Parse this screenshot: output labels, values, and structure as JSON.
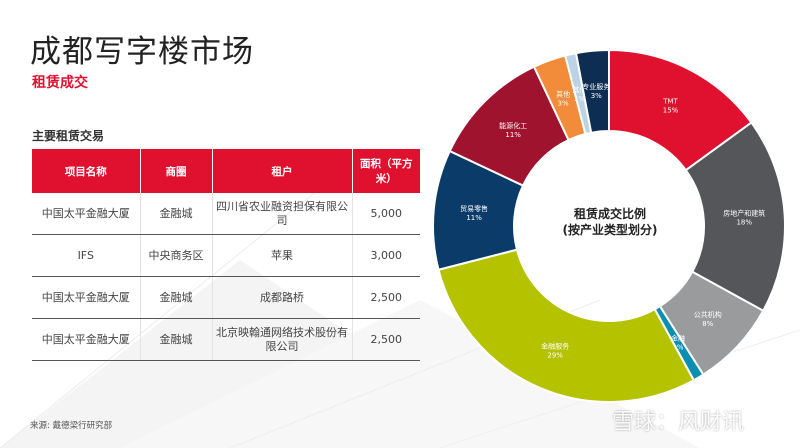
{
  "title": "成都写字楼市场",
  "subtitle": "租赁成交",
  "table_heading": "主要租赁交易",
  "table": {
    "headers": [
      "项目名称",
      "商圈",
      "租户",
      "面积（平方米）"
    ],
    "rows": [
      [
        "中国太平金融大厦",
        "金融城",
        "四川省农业融资担保有限公司",
        "5,000"
      ],
      [
        "IFS",
        "中央商务区",
        "苹果",
        "3,000"
      ],
      [
        "中国太平金融大厦",
        "金融城",
        "成都路桥",
        "2,500"
      ],
      [
        "中国太平金融大厦",
        "金融城",
        "北京映翰通网络技术股份有限公司",
        "2,500"
      ]
    ]
  },
  "source": "来源: 戴德梁行研究部",
  "watermark": "雪球：风财讯",
  "chart_data": {
    "type": "pie",
    "title": "租赁成交比例",
    "subtitle": "(按产业类型划分)",
    "unit": "%",
    "slices": [
      {
        "label": "TMT",
        "value": 15,
        "color": "#e0102f"
      },
      {
        "label": "房地产和建筑",
        "value": 18,
        "color": "#54565a"
      },
      {
        "label": "公共机构",
        "value": 8,
        "color": "#9a9b9d"
      },
      {
        "label": "金融",
        "value": 1,
        "color": "#0a8fb3"
      },
      {
        "label": "金融服务",
        "value": 29,
        "color": "#b5c200"
      },
      {
        "label": "贸易零售",
        "value": 11,
        "color": "#0b3c69"
      },
      {
        "label": "能源化工",
        "value": 11,
        "color": "#a0132e"
      },
      {
        "label": "其他",
        "value": 3,
        "color": "#f28c3a"
      },
      {
        "label": "其他",
        "value": 1,
        "color": "#bcd3e4"
      },
      {
        "label": "专业服务",
        "value": 3,
        "color": "#0d2d52"
      }
    ],
    "data_labels": [
      "15%",
      "18%",
      "8%",
      "1%",
      "29%",
      "11%",
      "11%",
      "3%",
      "1%",
      "3%"
    ]
  }
}
